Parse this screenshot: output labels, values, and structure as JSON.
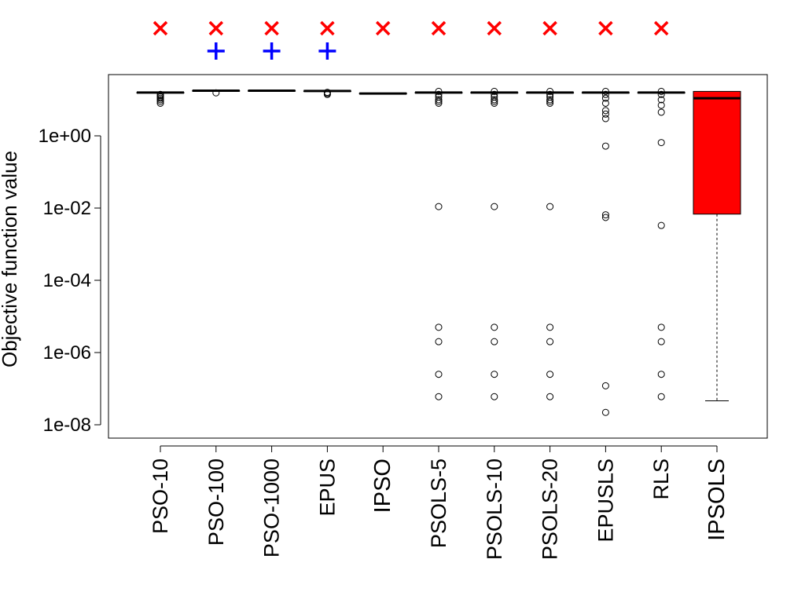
{
  "chart_data": {
    "type": "boxplot",
    "title": "",
    "ylabel": "Objective function value",
    "xlabel": "",
    "yscale": "log",
    "ylim": [
      3e-09,
      30
    ],
    "yticks": [
      {
        "value": 1,
        "label": "1e+00"
      },
      {
        "value": 0.01,
        "label": "1e-02"
      },
      {
        "value": 0.0001,
        "label": "1e-04"
      },
      {
        "value": 1e-06,
        "label": "1e-06"
      },
      {
        "value": 1e-08,
        "label": "1e-08"
      }
    ],
    "grid": false,
    "legend": "none",
    "colors": {
      "highlight_box": "#ff0000",
      "cross_marker": "#ff0000",
      "plus_marker": "#0000ff",
      "default_box": "#ffffff"
    },
    "categories": [
      "PSO-10",
      "PSO-100",
      "PSO-1000",
      "EPUS",
      "IPSO",
      "PSOLS-5",
      "PSOLS-10",
      "PSOLS-20",
      "EPUSLS",
      "RLS",
      "IPSOLS"
    ],
    "emphasized_categories": [
      "IPSO",
      "IPSOLS"
    ],
    "markers": {
      "crosses": [
        "PSO-10",
        "PSO-100",
        "PSO-1000",
        "EPUS",
        "IPSO",
        "PSOLS-5",
        "PSOLS-10",
        "PSOLS-20",
        "EPUSLS",
        "RLS"
      ],
      "plus": [
        "PSO-100",
        "PSO-1000",
        "EPUS"
      ]
    },
    "boxes": [
      {
        "name": "PSO-10",
        "q1": 15.8,
        "median": 15.8,
        "q3": 15.8,
        "whisker_low": 15.8,
        "whisker_high": 15.8,
        "outliers": [
          8,
          9,
          10,
          11,
          12,
          13,
          14
        ]
      },
      {
        "name": "PSO-100",
        "q1": 17.8,
        "median": 17.8,
        "q3": 17.8,
        "whisker_low": 17.8,
        "whisker_high": 17.8,
        "outliers": [
          15.5
        ]
      },
      {
        "name": "PSO-1000",
        "q1": 17.8,
        "median": 17.8,
        "q3": 17.8,
        "whisker_low": 17.8,
        "whisker_high": 17.8,
        "outliers": []
      },
      {
        "name": "EPUS",
        "q1": 17.4,
        "median": 17.4,
        "q3": 17.4,
        "whisker_low": 17.4,
        "whisker_high": 17.4,
        "outliers": [
          14,
          15,
          16
        ]
      },
      {
        "name": "IPSO",
        "q1": 14.5,
        "median": 14.8,
        "q3": 15.1,
        "whisker_low": 14.5,
        "whisker_high": 15.1,
        "outliers": []
      },
      {
        "name": "PSOLS-5",
        "q1": 15.8,
        "median": 15.8,
        "q3": 15.8,
        "whisker_low": 15.8,
        "whisker_high": 15.8,
        "outliers": [
          8,
          9,
          10,
          12,
          14,
          17,
          0.011,
          5e-06,
          2e-06,
          2.5e-07,
          6e-08
        ]
      },
      {
        "name": "PSOLS-10",
        "q1": 15.8,
        "median": 15.8,
        "q3": 15.8,
        "whisker_low": 15.8,
        "whisker_high": 15.8,
        "outliers": [
          8,
          9,
          10,
          12,
          14,
          17,
          0.011,
          5e-06,
          2e-06,
          2.5e-07,
          6e-08
        ]
      },
      {
        "name": "PSOLS-20",
        "q1": 15.8,
        "median": 15.8,
        "q3": 15.8,
        "whisker_low": 15.8,
        "whisker_high": 15.8,
        "outliers": [
          8,
          9,
          10,
          12,
          14,
          17,
          0.011,
          5e-06,
          2e-06,
          2.5e-07,
          6e-08
        ]
      },
      {
        "name": "EPUSLS",
        "q1": 15.8,
        "median": 15.8,
        "q3": 15.8,
        "whisker_low": 15.8,
        "whisker_high": 15.8,
        "outliers": [
          17,
          14,
          11,
          8,
          5,
          4,
          3,
          0.52,
          0.0065,
          0.0055,
          1.2e-07,
          2.2e-08
        ]
      },
      {
        "name": "RLS",
        "q1": 15.8,
        "median": 15.8,
        "q3": 15.8,
        "whisker_low": 15.8,
        "whisker_high": 15.8,
        "outliers": [
          17,
          14,
          10,
          7,
          4.5,
          0.65,
          0.0033,
          5e-06,
          2e-06,
          2.5e-07,
          6e-08
        ]
      },
      {
        "name": "IPSOLS",
        "q1": 0.0068,
        "median": 11,
        "q3": 17,
        "whisker_low": 4.6e-08,
        "whisker_high": 17,
        "outliers": []
      }
    ]
  }
}
